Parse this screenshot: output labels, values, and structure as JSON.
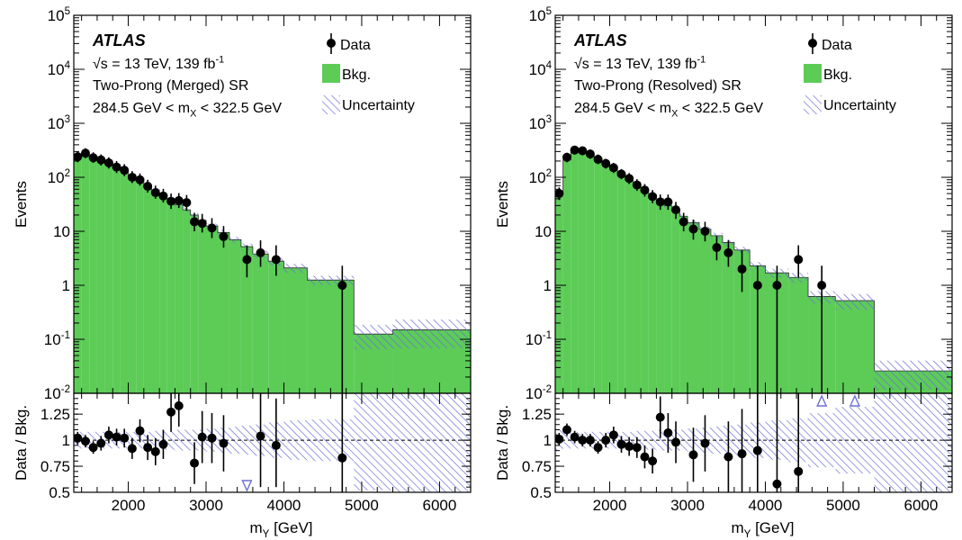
{
  "chart_data": [
    {
      "type": "histogram",
      "annotation": {
        "experiment": "ATLAS",
        "energy": "√s = 13 TeV, 139 fb",
        "energy_sup": "-1",
        "region": "Two-Prong (Merged) SR",
        "mass_window": "284.5 GeV < m",
        "mass_window_sub": "X",
        "mass_window_tail": " < 322.5 GeV"
      },
      "legend": {
        "position": "top-right",
        "data": "Data",
        "bkg": "Bkg.",
        "unc": "Uncertainty"
      },
      "xlabel": "m",
      "xlabel_sub": "Y",
      "xlabel_unit": " [GeV]",
      "xlim": [
        1300,
        6400
      ],
      "xticks": [
        2000,
        3000,
        4000,
        5000,
        6000
      ],
      "top": {
        "ylabel": "Events",
        "yscale": "log",
        "ylim": [
          0.01,
          100000
        ],
        "ytick_labels": [
          {
            "v": 0.01,
            "b": "10",
            "e": "-2"
          },
          {
            "v": 0.1,
            "b": "10",
            "e": "-1"
          },
          {
            "v": 1,
            "b": "1",
            "e": ""
          },
          {
            "v": 10,
            "b": "10",
            "e": ""
          },
          {
            "v": 100,
            "b": "10",
            "e": "2"
          },
          {
            "v": 1000,
            "b": "10",
            "e": "3"
          },
          {
            "v": 10000,
            "b": "10",
            "e": "4"
          },
          {
            "v": 100000,
            "b": "10",
            "e": "5"
          }
        ]
      },
      "bottom": {
        "ylabel": "Data / Bkg.",
        "ylim": [
          0.5,
          1.45
        ],
        "yticks": [
          0.5,
          0.75,
          1,
          1.25
        ],
        "ytick_labels": [
          "0.5",
          "0.75",
          "1",
          "1.25"
        ]
      },
      "background": [
        {
          "lo": 1300,
          "hi": 1400,
          "v": 260,
          "u": 0.08
        },
        {
          "lo": 1400,
          "hi": 1500,
          "v": 255,
          "u": 0.08
        },
        {
          "lo": 1500,
          "hi": 1600,
          "v": 230,
          "u": 0.08
        },
        {
          "lo": 1600,
          "hi": 1700,
          "v": 205,
          "u": 0.08
        },
        {
          "lo": 1700,
          "hi": 1800,
          "v": 178,
          "u": 0.08
        },
        {
          "lo": 1800,
          "hi": 1900,
          "v": 150,
          "u": 0.08
        },
        {
          "lo": 1900,
          "hi": 2000,
          "v": 128,
          "u": 0.08
        },
        {
          "lo": 2000,
          "hi": 2100,
          "v": 108,
          "u": 0.08
        },
        {
          "lo": 2100,
          "hi": 2200,
          "v": 88,
          "u": 0.08
        },
        {
          "lo": 2200,
          "hi": 2300,
          "v": 72,
          "u": 0.08
        },
        {
          "lo": 2300,
          "hi": 2400,
          "v": 58,
          "u": 0.09
        },
        {
          "lo": 2400,
          "hi": 2500,
          "v": 47,
          "u": 0.09
        },
        {
          "lo": 2500,
          "hi": 2600,
          "v": 38,
          "u": 0.09
        },
        {
          "lo": 2600,
          "hi": 2700,
          "v": 31,
          "u": 0.1
        },
        {
          "lo": 2700,
          "hi": 2800,
          "v": 25,
          "u": 0.1
        },
        {
          "lo": 2800,
          "hi": 2900,
          "v": 20,
          "u": 0.1
        },
        {
          "lo": 2900,
          "hi": 3000,
          "v": 16,
          "u": 0.1
        },
        {
          "lo": 3000,
          "hi": 3150,
          "v": 12.5,
          "u": 0.11
        },
        {
          "lo": 3150,
          "hi": 3300,
          "v": 9.5,
          "u": 0.12
        },
        {
          "lo": 3300,
          "hi": 3450,
          "v": 7,
          "u": 0.13
        },
        {
          "lo": 3450,
          "hi": 3600,
          "v": 5.2,
          "u": 0.14
        },
        {
          "lo": 3600,
          "hi": 3800,
          "v": 3.8,
          "u": 0.15
        },
        {
          "lo": 3800,
          "hi": 4000,
          "v": 2.8,
          "u": 0.17
        },
        {
          "lo": 4000,
          "hi": 4300,
          "v": 2.1,
          "u": 0.19
        },
        {
          "lo": 4300,
          "hi": 4900,
          "v": 1.25,
          "u": 0.2
        },
        {
          "lo": 4900,
          "hi": 5400,
          "v": 0.125,
          "u": 0.48
        },
        {
          "lo": 5400,
          "hi": 6400,
          "v": 0.15,
          "u": 0.55
        }
      ],
      "data_points": [
        {
          "x": 1350,
          "y": 240,
          "el": 190,
          "eh": 300
        },
        {
          "x": 1450,
          "y": 280,
          "el": 225,
          "eh": 345
        },
        {
          "x": 1550,
          "y": 230,
          "el": 185,
          "eh": 290
        },
        {
          "x": 1650,
          "y": 210,
          "el": 165,
          "eh": 265
        },
        {
          "x": 1750,
          "y": 185,
          "el": 145,
          "eh": 235
        },
        {
          "x": 1850,
          "y": 155,
          "el": 120,
          "eh": 200
        },
        {
          "x": 1950,
          "y": 135,
          "el": 105,
          "eh": 175
        },
        {
          "x": 2050,
          "y": 100,
          "el": 78,
          "eh": 130
        },
        {
          "x": 2150,
          "y": 90,
          "el": 70,
          "eh": 118
        },
        {
          "x": 2250,
          "y": 68,
          "el": 52,
          "eh": 90
        },
        {
          "x": 2350,
          "y": 52,
          "el": 40,
          "eh": 70
        },
        {
          "x": 2450,
          "y": 45,
          "el": 34,
          "eh": 61
        },
        {
          "x": 2550,
          "y": 36,
          "el": 26,
          "eh": 50
        },
        {
          "x": 2650,
          "y": 37,
          "el": 27,
          "eh": 51
        },
        {
          "x": 2750,
          "y": 34,
          "el": 24,
          "eh": 47
        },
        {
          "x": 2850,
          "y": 15,
          "el": 10,
          "eh": 22
        },
        {
          "x": 2950,
          "y": 14,
          "el": 9.5,
          "eh": 21
        },
        {
          "x": 3075,
          "y": 11.5,
          "el": 7.5,
          "eh": 17.5
        },
        {
          "x": 3225,
          "y": 8,
          "el": 5,
          "eh": 12.5
        },
        {
          "x": 3525,
          "y": 3,
          "el": 1.4,
          "eh": 5.5
        },
        {
          "x": 3700,
          "y": 4,
          "el": 2.2,
          "eh": 6.8
        },
        {
          "x": 3900,
          "y": 3,
          "el": 1.5,
          "eh": 5.5
        },
        {
          "x": 4750,
          "y": 1,
          "el": 0.01,
          "eh": 2.3
        }
      ],
      "ratio_points": [
        {
          "x": 1350,
          "y": 1.02,
          "el": 0.96,
          "eh": 1.08
        },
        {
          "x": 1450,
          "y": 0.99,
          "el": 0.93,
          "eh": 1.05
        },
        {
          "x": 1550,
          "y": 0.93,
          "el": 0.87,
          "eh": 0.99
        },
        {
          "x": 1650,
          "y": 0.97,
          "el": 0.9,
          "eh": 1.04
        },
        {
          "x": 1750,
          "y": 1.05,
          "el": 0.97,
          "eh": 1.13
        },
        {
          "x": 1850,
          "y": 1.03,
          "el": 0.95,
          "eh": 1.11
        },
        {
          "x": 1950,
          "y": 1.02,
          "el": 0.93,
          "eh": 1.11
        },
        {
          "x": 2050,
          "y": 0.92,
          "el": 0.82,
          "eh": 1.02
        },
        {
          "x": 2150,
          "y": 1.09,
          "el": 0.98,
          "eh": 1.2
        },
        {
          "x": 2250,
          "y": 0.93,
          "el": 0.81,
          "eh": 1.05
        },
        {
          "x": 2350,
          "y": 0.89,
          "el": 0.76,
          "eh": 1.02
        },
        {
          "x": 2450,
          "y": 0.96,
          "el": 0.82,
          "eh": 1.1
        },
        {
          "x": 2550,
          "y": 1.27,
          "el": 1.08,
          "eh": 1.46
        },
        {
          "x": 2650,
          "y": 1.33,
          "el": 1.13,
          "eh": 1.53
        },
        {
          "x": 2850,
          "y": 0.78,
          "el": 0.58,
          "eh": 0.98
        },
        {
          "x": 2950,
          "y": 1.03,
          "el": 0.78,
          "eh": 1.28
        },
        {
          "x": 3075,
          "y": 1.02,
          "el": 0.78,
          "eh": 1.26
        },
        {
          "x": 3225,
          "y": 0.97,
          "el": 0.7,
          "eh": 1.24
        },
        {
          "x": 3700,
          "y": 1.04,
          "el": 0.55,
          "eh": 1.55
        },
        {
          "x": 3900,
          "y": 0.95,
          "el": 0.55,
          "eh": 1.4
        },
        {
          "x": 4750,
          "y": 0.83,
          "el": 0.3,
          "eh": 2.0
        }
      ],
      "ratio_arrows": [
        {
          "x": 3525,
          "dir": "down"
        }
      ]
    },
    {
      "type": "histogram",
      "annotation": {
        "experiment": "ATLAS",
        "energy": "√s = 13 TeV, 139 fb",
        "energy_sup": "-1",
        "region": "Two-Prong (Resolved) SR",
        "mass_window": "284.5 GeV < m",
        "mass_window_sub": "X",
        "mass_window_tail": " < 322.5 GeV"
      },
      "legend": {
        "position": "top-right",
        "data": "Data",
        "bkg": "Bkg.",
        "unc": "Uncertainty"
      },
      "xlabel": "m",
      "xlabel_sub": "Y",
      "xlabel_unit": " [GeV]",
      "xlim": [
        1300,
        6400
      ],
      "xticks": [
        2000,
        3000,
        4000,
        5000,
        6000
      ],
      "top": {
        "ylabel": "Events",
        "yscale": "log",
        "ylim": [
          0.01,
          100000
        ],
        "ytick_labels": [
          {
            "v": 0.01,
            "b": "10",
            "e": "-2"
          },
          {
            "v": 0.1,
            "b": "10",
            "e": "-1"
          },
          {
            "v": 1,
            "b": "1",
            "e": ""
          },
          {
            "v": 10,
            "b": "10",
            "e": ""
          },
          {
            "v": 100,
            "b": "10",
            "e": "2"
          },
          {
            "v": 1000,
            "b": "10",
            "e": "3"
          },
          {
            "v": 10000,
            "b": "10",
            "e": "4"
          },
          {
            "v": 100000,
            "b": "10",
            "e": "5"
          }
        ]
      },
      "bottom": {
        "ylabel": "Data / Bkg.",
        "ylim": [
          0.5,
          1.45
        ],
        "yticks": [
          0.5,
          0.75,
          1,
          1.25
        ],
        "ytick_labels": [
          "0.5",
          "0.75",
          "1",
          "1.25"
        ]
      },
      "background": [
        {
          "lo": 1300,
          "hi": 1400,
          "v": 48,
          "u": 0.1
        },
        {
          "lo": 1400,
          "hi": 1500,
          "v": 210,
          "u": 0.08
        },
        {
          "lo": 1500,
          "hi": 1600,
          "v": 310,
          "u": 0.08
        },
        {
          "lo": 1600,
          "hi": 1700,
          "v": 300,
          "u": 0.08
        },
        {
          "lo": 1700,
          "hi": 1800,
          "v": 265,
          "u": 0.08
        },
        {
          "lo": 1800,
          "hi": 1900,
          "v": 220,
          "u": 0.08
        },
        {
          "lo": 1900,
          "hi": 2000,
          "v": 180,
          "u": 0.08
        },
        {
          "lo": 2000,
          "hi": 2100,
          "v": 148,
          "u": 0.08
        },
        {
          "lo": 2100,
          "hi": 2200,
          "v": 118,
          "u": 0.08
        },
        {
          "lo": 2200,
          "hi": 2300,
          "v": 95,
          "u": 0.08
        },
        {
          "lo": 2300,
          "hi": 2400,
          "v": 76,
          "u": 0.09
        },
        {
          "lo": 2400,
          "hi": 2500,
          "v": 60,
          "u": 0.09
        },
        {
          "lo": 2500,
          "hi": 2600,
          "v": 48,
          "u": 0.09
        },
        {
          "lo": 2600,
          "hi": 2700,
          "v": 38,
          "u": 0.1
        },
        {
          "lo": 2700,
          "hi": 2800,
          "v": 30,
          "u": 0.1
        },
        {
          "lo": 2800,
          "hi": 2900,
          "v": 24,
          "u": 0.1
        },
        {
          "lo": 2900,
          "hi": 3000,
          "v": 19,
          "u": 0.1
        },
        {
          "lo": 3000,
          "hi": 3150,
          "v": 14.5,
          "u": 0.11
        },
        {
          "lo": 3150,
          "hi": 3300,
          "v": 11,
          "u": 0.12
        },
        {
          "lo": 3300,
          "hi": 3450,
          "v": 8.3,
          "u": 0.13
        },
        {
          "lo": 3450,
          "hi": 3600,
          "v": 6.2,
          "u": 0.14
        },
        {
          "lo": 3600,
          "hi": 3800,
          "v": 4.5,
          "u": 0.15
        },
        {
          "lo": 3800,
          "hi": 4000,
          "v": 2.3,
          "u": 0.17
        },
        {
          "lo": 4000,
          "hi": 4300,
          "v": 1.7,
          "u": 0.19
        },
        {
          "lo": 4300,
          "hi": 4550,
          "v": 1.4,
          "u": 0.21
        },
        {
          "lo": 4550,
          "hi": 4900,
          "v": 0.62,
          "u": 0.26
        },
        {
          "lo": 4900,
          "hi": 5400,
          "v": 0.52,
          "u": 0.32
        },
        {
          "lo": 5400,
          "hi": 6400,
          "v": 0.026,
          "u": 0.55
        }
      ],
      "data_points": [
        {
          "x": 1350,
          "y": 50,
          "el": 38,
          "eh": 65
        },
        {
          "x": 1450,
          "y": 235,
          "el": 190,
          "eh": 285
        },
        {
          "x": 1550,
          "y": 320,
          "el": 265,
          "eh": 380
        },
        {
          "x": 1650,
          "y": 310,
          "el": 255,
          "eh": 370
        },
        {
          "x": 1750,
          "y": 270,
          "el": 220,
          "eh": 325
        },
        {
          "x": 1850,
          "y": 215,
          "el": 175,
          "eh": 265
        },
        {
          "x": 1950,
          "y": 180,
          "el": 145,
          "eh": 220
        },
        {
          "x": 2050,
          "y": 150,
          "el": 120,
          "eh": 185
        },
        {
          "x": 2150,
          "y": 115,
          "el": 92,
          "eh": 142
        },
        {
          "x": 2250,
          "y": 95,
          "el": 75,
          "eh": 120
        },
        {
          "x": 2350,
          "y": 72,
          "el": 56,
          "eh": 92
        },
        {
          "x": 2450,
          "y": 58,
          "el": 44,
          "eh": 75
        },
        {
          "x": 2550,
          "y": 44,
          "el": 33,
          "eh": 58
        },
        {
          "x": 2650,
          "y": 35,
          "el": 25,
          "eh": 48
        },
        {
          "x": 2750,
          "y": 35,
          "el": 25,
          "eh": 48
        },
        {
          "x": 2850,
          "y": 25,
          "el": 17,
          "eh": 35
        },
        {
          "x": 2950,
          "y": 15,
          "el": 10,
          "eh": 22
        },
        {
          "x": 3075,
          "y": 11,
          "el": 7,
          "eh": 16.5
        },
        {
          "x": 3225,
          "y": 10,
          "el": 6.5,
          "eh": 15
        },
        {
          "x": 3375,
          "y": 5,
          "el": 2.9,
          "eh": 8.2
        },
        {
          "x": 3525,
          "y": 4,
          "el": 2.2,
          "eh": 6.8
        },
        {
          "x": 3700,
          "y": 2,
          "el": 0.75,
          "eh": 4.5
        },
        {
          "x": 3900,
          "y": 1,
          "el": 0.01,
          "eh": 2.3
        },
        {
          "x": 4150,
          "y": 1,
          "el": 0.01,
          "eh": 2.3
        },
        {
          "x": 4425,
          "y": 3,
          "el": 1.4,
          "eh": 5.5
        },
        {
          "x": 4725,
          "y": 1,
          "el": 0.01,
          "eh": 2.3
        }
      ],
      "ratio_points": [
        {
          "x": 1350,
          "y": 1.01,
          "el": 0.95,
          "eh": 1.07
        },
        {
          "x": 1450,
          "y": 1.1,
          "el": 1.04,
          "eh": 1.16
        },
        {
          "x": 1550,
          "y": 1.03,
          "el": 0.97,
          "eh": 1.09
        },
        {
          "x": 1650,
          "y": 1.0,
          "el": 0.94,
          "eh": 1.06
        },
        {
          "x": 1750,
          "y": 1.0,
          "el": 0.94,
          "eh": 1.06
        },
        {
          "x": 1850,
          "y": 0.93,
          "el": 0.87,
          "eh": 0.99
        },
        {
          "x": 1950,
          "y": 1.0,
          "el": 0.93,
          "eh": 1.07
        },
        {
          "x": 2050,
          "y": 1.05,
          "el": 0.97,
          "eh": 1.13
        },
        {
          "x": 2150,
          "y": 0.96,
          "el": 0.88,
          "eh": 1.04
        },
        {
          "x": 2250,
          "y": 0.94,
          "el": 0.85,
          "eh": 1.03
        },
        {
          "x": 2350,
          "y": 0.93,
          "el": 0.83,
          "eh": 1.03
        },
        {
          "x": 2450,
          "y": 0.84,
          "el": 0.73,
          "eh": 0.95
        },
        {
          "x": 2550,
          "y": 0.8,
          "el": 0.68,
          "eh": 0.92
        },
        {
          "x": 2650,
          "y": 1.22,
          "el": 1.02,
          "eh": 1.42
        },
        {
          "x": 2750,
          "y": 1.07,
          "el": 0.88,
          "eh": 1.26
        },
        {
          "x": 2850,
          "y": 0.98,
          "el": 0.78,
          "eh": 1.18
        },
        {
          "x": 3075,
          "y": 0.86,
          "el": 0.6,
          "eh": 1.12
        },
        {
          "x": 3225,
          "y": 0.97,
          "el": 0.7,
          "eh": 1.24
        },
        {
          "x": 3525,
          "y": 0.84,
          "el": 0.5,
          "eh": 1.18
        },
        {
          "x": 3700,
          "y": 0.87,
          "el": 0.5,
          "eh": 1.3
        },
        {
          "x": 3900,
          "y": 0.9,
          "el": 0.45,
          "eh": 1.55
        },
        {
          "x": 4150,
          "y": 0.58,
          "el": 0.3,
          "eh": 1.5
        },
        {
          "x": 4425,
          "y": 0.7,
          "el": 0.35,
          "eh": 1.5
        }
      ],
      "ratio_arrows": [
        {
          "x": 4725,
          "dir": "up"
        },
        {
          "x": 5150,
          "dir": "up"
        }
      ]
    }
  ]
}
